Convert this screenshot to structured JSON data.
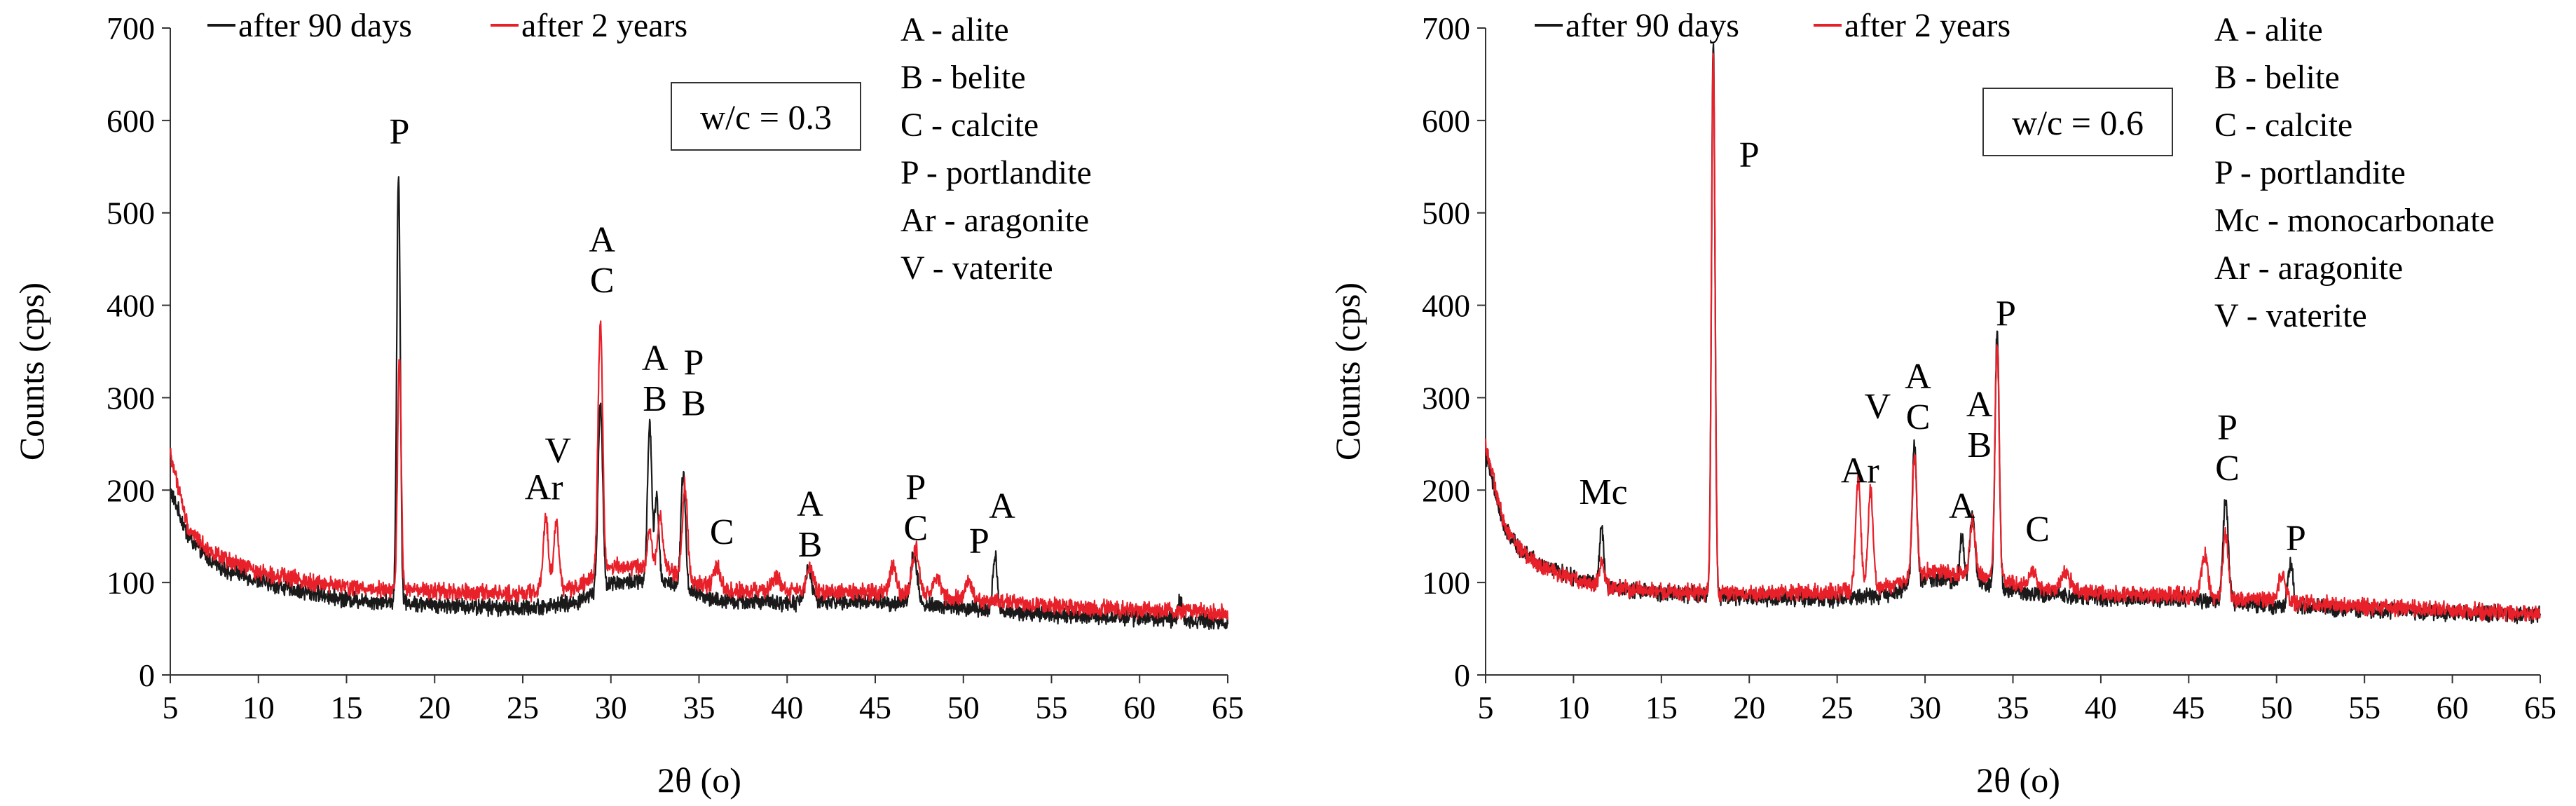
{
  "colors": {
    "series_90d": "#1a1a1a",
    "series_2y": "#e8202a",
    "axis": "#333333"
  },
  "chart_data": [
    {
      "type": "line",
      "id": "wc03",
      "title": "w/c = 0.3",
      "xlabel": "2θ (o)",
      "ylabel": "Counts (cps)",
      "xlim": [
        5,
        65
      ],
      "ylim": [
        0,
        700
      ],
      "xticks": [
        "5",
        "10",
        "15",
        "20",
        "25",
        "30",
        "35",
        "40",
        "45",
        "50",
        "55",
        "60",
        "65"
      ],
      "yticks": [
        "0",
        "100",
        "200",
        "300",
        "400",
        "500",
        "600",
        "700"
      ],
      "legend": [
        "after 90 days",
        "after 2 years"
      ],
      "key": [
        "A - alite",
        "B - belite",
        "C - calcite",
        "P - portlandite",
        "Ar - aragonite",
        "V - vaterite"
      ],
      "series": [
        {
          "name": "after 90 days",
          "baseline": [
            [
              5,
              200
            ],
            [
              6,
              150
            ],
            [
              7,
              128
            ],
            [
              8,
              115
            ],
            [
              10,
              102
            ],
            [
              12,
              92
            ],
            [
              15,
              82
            ],
            [
              20,
              76
            ],
            [
              25,
              72
            ],
            [
              28,
              78
            ],
            [
              30,
              100
            ],
            [
              33,
              102
            ],
            [
              36,
              80
            ],
            [
              40,
              78
            ],
            [
              45,
              80
            ],
            [
              50,
              72
            ],
            [
              55,
              66
            ],
            [
              60,
              62
            ],
            [
              65,
              58
            ]
          ],
          "noise": 7,
          "peaks": [
            [
              17.95,
              465,
              0.1
            ],
            [
              29.4,
              200,
              0.13
            ],
            [
              32.2,
              170,
              0.12
            ],
            [
              32.6,
              90,
              0.12
            ],
            [
              34.1,
              125,
              0.13
            ],
            [
              41.2,
              35,
              0.2
            ],
            [
              47.2,
              55,
              0.18
            ],
            [
              51.8,
              60,
              0.12
            ],
            [
              62.3,
              20,
              0.1
            ]
          ]
        },
        {
          "name": "after 2 years",
          "baseline": [
            [
              5,
              240
            ],
            [
              6,
              160
            ],
            [
              7,
              138
            ],
            [
              8,
              125
            ],
            [
              10,
              112
            ],
            [
              12,
              104
            ],
            [
              15,
              95
            ],
            [
              20,
              90
            ],
            [
              25,
              88
            ],
            [
              28,
              95
            ],
            [
              30,
              118
            ],
            [
              33,
              115
            ],
            [
              36,
              92
            ],
            [
              40,
              90
            ],
            [
              45,
              90
            ],
            [
              50,
              82
            ],
            [
              55,
              75
            ],
            [
              60,
              70
            ],
            [
              65,
              68
            ]
          ],
          "noise": 7,
          "peaks": [
            [
              18.0,
              250,
              0.1
            ],
            [
              26.3,
              80,
              0.15
            ],
            [
              26.9,
              70,
              0.15
            ],
            [
              29.4,
              270,
              0.13
            ],
            [
              32.2,
              40,
              0.12
            ],
            [
              32.8,
              55,
              0.15
            ],
            [
              34.2,
              100,
              0.14
            ],
            [
              36.0,
              25,
              0.2
            ],
            [
              39.4,
              15,
              0.25
            ],
            [
              41.3,
              25,
              0.2
            ],
            [
              46.0,
              30,
              0.18
            ],
            [
              47.3,
              50,
              0.2
            ],
            [
              48.5,
              20,
              0.2
            ],
            [
              50.3,
              18,
              0.2
            ]
          ]
        }
      ],
      "peak_labels": [
        {
          "x": 18.0,
          "y": 575,
          "lines": [
            "P"
          ]
        },
        {
          "x": 29.5,
          "y": 458,
          "lines": [
            "A",
            "C"
          ]
        },
        {
          "x": 26.2,
          "y": 190,
          "lines": [
            "Ar"
          ]
        },
        {
          "x": 27.0,
          "y": 230,
          "lines": [
            "V"
          ]
        },
        {
          "x": 32.5,
          "y": 330,
          "lines": [
            "A",
            "B"
          ]
        },
        {
          "x": 34.7,
          "y": 325,
          "lines": [
            "P",
            "B"
          ]
        },
        {
          "x": 36.3,
          "y": 142,
          "lines": [
            "C"
          ]
        },
        {
          "x": 41.3,
          "y": 172,
          "lines": [
            "A",
            "B"
          ]
        },
        {
          "x": 47.3,
          "y": 190,
          "lines": [
            "P",
            "C"
          ]
        },
        {
          "x": 50.9,
          "y": 132,
          "lines": [
            "P"
          ]
        },
        {
          "x": 52.2,
          "y": 170,
          "lines": [
            "A"
          ]
        }
      ]
    },
    {
      "type": "line",
      "id": "wc06",
      "title": "w/c = 0.6",
      "xlabel": "2θ (o)",
      "ylabel": "Counts (cps)",
      "xlim": [
        5,
        65
      ],
      "ylim": [
        0,
        700
      ],
      "xticks": [
        "5",
        "10",
        "15",
        "20",
        "25",
        "30",
        "35",
        "40",
        "45",
        "50",
        "55",
        "60",
        "65"
      ],
      "yticks": [
        "0",
        "100",
        "200",
        "300",
        "400",
        "500",
        "600",
        "700"
      ],
      "legend": [
        "after 90 days",
        "after 2 years"
      ],
      "key": [
        "A - alite",
        "B - belite",
        "C - calcite",
        "P - portlandite",
        "Mc - monocarbonate",
        "Ar - aragonite",
        "V - vaterite"
      ],
      "series": [
        {
          "name": "after 90 days",
          "baseline": [
            [
              5,
              240
            ],
            [
              6,
              160
            ],
            [
              7,
              135
            ],
            [
              8,
              120
            ],
            [
              10,
              105
            ],
            [
              12,
              95
            ],
            [
              15,
              88
            ],
            [
              20,
              84
            ],
            [
              25,
              82
            ],
            [
              28,
              88
            ],
            [
              30,
              105
            ],
            [
              33,
              100
            ],
            [
              36,
              88
            ],
            [
              40,
              84
            ],
            [
              45,
              82
            ],
            [
              50,
              75
            ],
            [
              55,
              70
            ],
            [
              60,
              67
            ],
            [
              65,
              65
            ]
          ],
          "noise": 7,
          "peaks": [
            [
              11.6,
              65,
              0.12
            ],
            [
              17.95,
              600,
              0.1
            ],
            [
              29.4,
              150,
              0.13
            ],
            [
              32.1,
              50,
              0.12
            ],
            [
              32.7,
              70,
              0.15
            ],
            [
              34.1,
              275,
              0.12
            ],
            [
              47.1,
              110,
              0.15
            ],
            [
              50.8,
              45,
              0.15
            ]
          ]
        },
        {
          "name": "after 2 years",
          "baseline": [
            [
              5,
              250
            ],
            [
              6,
              165
            ],
            [
              7,
              135
            ],
            [
              8,
              118
            ],
            [
              10,
              104
            ],
            [
              12,
              95
            ],
            [
              15,
              90
            ],
            [
              20,
              88
            ],
            [
              25,
              90
            ],
            [
              28,
              96
            ],
            [
              30,
              112
            ],
            [
              33,
              108
            ],
            [
              36,
              95
            ],
            [
              40,
              88
            ],
            [
              45,
              86
            ],
            [
              50,
              80
            ],
            [
              55,
              74
            ],
            [
              60,
              70
            ],
            [
              65,
              66
            ]
          ],
          "noise": 7,
          "peaks": [
            [
              11.6,
              25,
              0.12
            ],
            [
              17.95,
              585,
              0.1
            ],
            [
              26.2,
              120,
              0.14
            ],
            [
              26.9,
              105,
              0.14
            ],
            [
              29.4,
              130,
              0.13
            ],
            [
              32.7,
              60,
              0.15
            ],
            [
              34.1,
              255,
              0.12
            ],
            [
              36.1,
              20,
              0.2
            ],
            [
              38.0,
              20,
              0.25
            ],
            [
              45.9,
              45,
              0.18
            ],
            [
              47.1,
              70,
              0.15
            ],
            [
              50.3,
              30,
              0.2
            ]
          ]
        }
      ],
      "peak_labels": [
        {
          "x": 11.7,
          "y": 185,
          "lines": [
            "Mc"
          ]
        },
        {
          "x": 20.0,
          "y": 550,
          "lines": [
            "P"
          ]
        },
        {
          "x": 26.3,
          "y": 208,
          "lines": [
            "Ar"
          ]
        },
        {
          "x": 27.3,
          "y": 278,
          "lines": [
            "V"
          ]
        },
        {
          "x": 29.6,
          "y": 310,
          "lines": [
            "A",
            "C"
          ]
        },
        {
          "x": 32.1,
          "y": 170,
          "lines": [
            "A"
          ]
        },
        {
          "x": 33.1,
          "y": 280,
          "lines": [
            "A",
            "B"
          ]
        },
        {
          "x": 34.6,
          "y": 378,
          "lines": [
            "P"
          ]
        },
        {
          "x": 36.4,
          "y": 145,
          "lines": [
            "C"
          ]
        },
        {
          "x": 47.2,
          "y": 255,
          "lines": [
            "P",
            "C"
          ]
        },
        {
          "x": 51.1,
          "y": 135,
          "lines": [
            "P"
          ]
        }
      ]
    }
  ]
}
